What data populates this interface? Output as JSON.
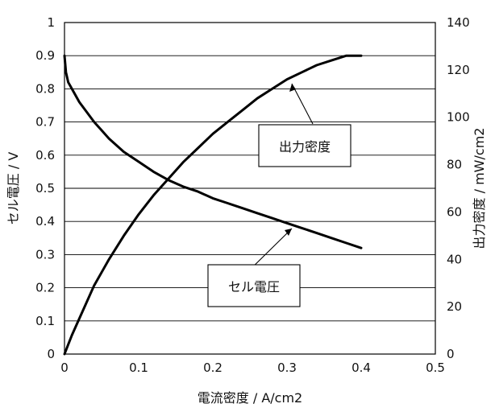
{
  "chart_data": {
    "type": "line",
    "x_axis": {
      "label": "電流密度 / A/cm2",
      "range": [
        0,
        0.5
      ],
      "ticks": [
        0,
        0.1,
        0.2,
        0.3,
        0.4,
        0.5
      ],
      "tick_labels": [
        "0",
        "0.1",
        "0.2",
        "0.3",
        "0.4",
        "0.5"
      ]
    },
    "y_left": {
      "label": "セル電圧 / V",
      "range": [
        0,
        1
      ],
      "ticks": [
        0,
        0.1,
        0.2,
        0.3,
        0.4,
        0.5,
        0.6,
        0.7,
        0.8,
        0.9,
        1
      ],
      "tick_labels": [
        "0",
        "0.1",
        "0.2",
        "0.3",
        "0.4",
        "0.5",
        "0.6",
        "0.7",
        "0.8",
        "0.9",
        "1"
      ]
    },
    "y_right": {
      "label": "出力密度 / mW/cm2",
      "range": [
        0,
        140
      ],
      "ticks": [
        0,
        20,
        40,
        60,
        80,
        100,
        120,
        140
      ],
      "tick_labels": [
        "0",
        "20",
        "40",
        "60",
        "80",
        "100",
        "120",
        "140"
      ]
    },
    "grid": "horizontal",
    "series": [
      {
        "name": "セル電圧",
        "axis": "left",
        "x": [
          0,
          0.002,
          0.005,
          0.01,
          0.02,
          0.04,
          0.06,
          0.08,
          0.1,
          0.12,
          0.14,
          0.16,
          0.18,
          0.2,
          0.22,
          0.24,
          0.26,
          0.28,
          0.3,
          0.32,
          0.34,
          0.36,
          0.38,
          0.4
        ],
        "values": [
          0.9,
          0.85,
          0.82,
          0.8,
          0.76,
          0.7,
          0.65,
          0.61,
          0.58,
          0.55,
          0.525,
          0.505,
          0.49,
          0.47,
          0.455,
          0.44,
          0.425,
          0.41,
          0.395,
          0.38,
          0.365,
          0.35,
          0.335,
          0.32
        ]
      },
      {
        "name": "出力密度",
        "axis": "right",
        "x": [
          0,
          0.005,
          0.01,
          0.02,
          0.04,
          0.06,
          0.08,
          0.1,
          0.12,
          0.14,
          0.16,
          0.18,
          0.2,
          0.22,
          0.24,
          0.26,
          0.28,
          0.3,
          0.32,
          0.34,
          0.36,
          0.38,
          0.4
        ],
        "values": [
          0,
          4,
          8,
          15,
          29,
          40,
          50,
          59,
          67,
          74,
          81,
          87,
          93,
          98,
          103,
          108,
          112,
          116,
          119,
          122,
          124,
          126,
          126
        ]
      }
    ],
    "annotations": [
      {
        "text": "出力密度",
        "target_series": "出力密度"
      },
      {
        "text": "セル電圧",
        "target_series": "セル電圧"
      }
    ]
  }
}
